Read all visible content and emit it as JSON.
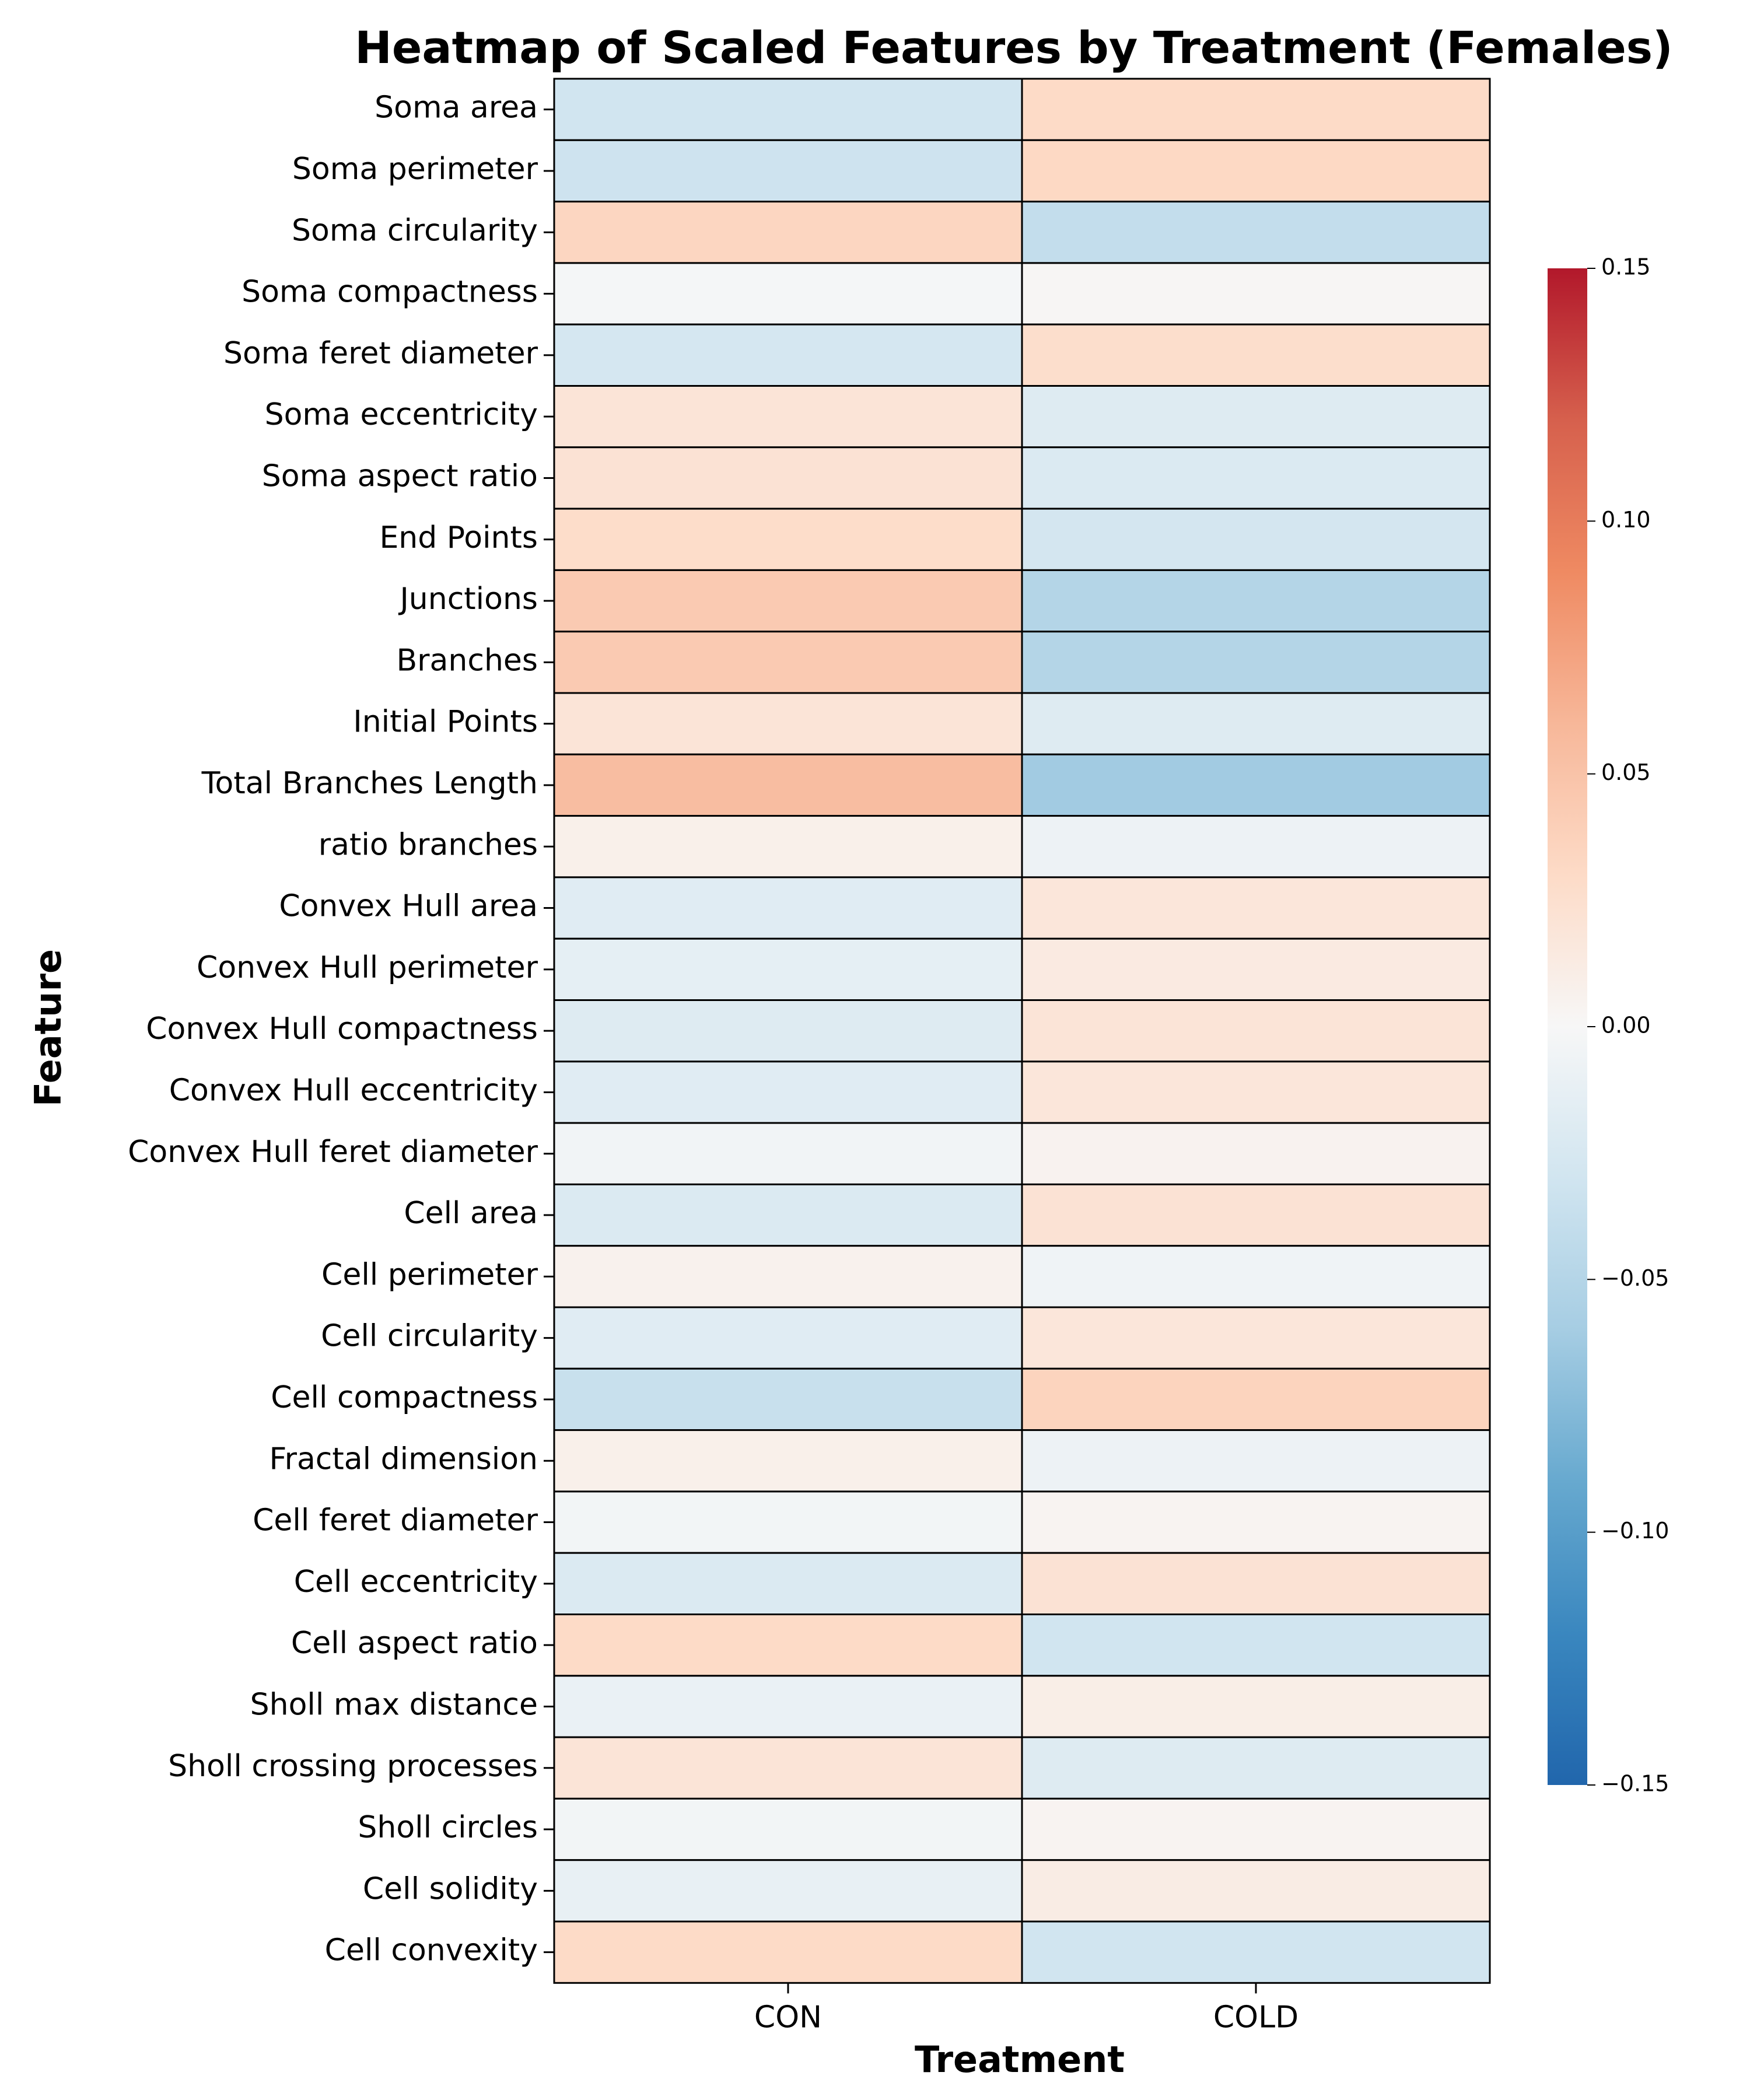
{
  "chart_data": {
    "type": "heatmap",
    "title": "Heatmap of Scaled Features by Treatment (Females)",
    "xlabel": "Treatment",
    "ylabel": "Feature",
    "columns": [
      "CON",
      "COLD"
    ],
    "rows": [
      "Soma area",
      "Soma perimeter",
      "Soma circularity",
      "Soma compactness",
      "Soma feret diameter",
      "Soma eccentricity",
      "Soma aspect ratio",
      "End Points",
      "Junctions",
      "Branches",
      "Initial Points",
      "Total Branches Length",
      "ratio branches",
      "Convex Hull area",
      "Convex Hull perimeter",
      "Convex Hull compactness",
      "Convex Hull eccentricity",
      "Convex Hull feret diameter",
      "Cell area",
      "Cell perimeter",
      "Cell circularity",
      "Cell compactness",
      "Fractal dimension",
      "Cell feret diameter",
      "Cell eccentricity",
      "Cell aspect ratio",
      "Sholl max distance",
      "Sholl crossing processes",
      "Sholl circles",
      "Cell solidity",
      "Cell convexity"
    ],
    "values": [
      [
        -0.03,
        0.03
      ],
      [
        -0.032,
        0.032
      ],
      [
        0.034,
        -0.04
      ],
      [
        -0.002,
        0.002
      ],
      [
        -0.027,
        0.027
      ],
      [
        0.02,
        -0.02
      ],
      [
        0.022,
        -0.022
      ],
      [
        0.028,
        -0.028
      ],
      [
        0.044,
        -0.05
      ],
      [
        0.044,
        -0.05
      ],
      [
        0.02,
        -0.02
      ],
      [
        0.055,
        -0.062
      ],
      [
        0.008,
        -0.008
      ],
      [
        -0.018,
        0.018
      ],
      [
        -0.014,
        0.014
      ],
      [
        -0.02,
        0.02
      ],
      [
        -0.018,
        0.018
      ],
      [
        -0.005,
        0.005
      ],
      [
        -0.022,
        0.022
      ],
      [
        0.006,
        -0.006
      ],
      [
        -0.018,
        0.018
      ],
      [
        -0.036,
        0.036
      ],
      [
        0.008,
        -0.008
      ],
      [
        -0.004,
        0.004
      ],
      [
        -0.022,
        0.022
      ],
      [
        0.03,
        -0.03
      ],
      [
        -0.01,
        0.01
      ],
      [
        0.02,
        -0.02
      ],
      [
        -0.004,
        0.004
      ],
      [
        -0.012,
        0.012
      ],
      [
        0.03,
        -0.03
      ]
    ],
    "colorbar": {
      "colormap": "RdBu_r",
      "vmin": -0.15,
      "vmax": 0.15,
      "tick_values": [
        0.15,
        0.1,
        0.05,
        0.0,
        -0.05,
        -0.1,
        -0.15
      ],
      "tick_labels": [
        "0.15",
        "0.10",
        "0.05",
        "0.00",
        "−0.05",
        "−0.10",
        "−0.15"
      ]
    },
    "grid": false,
    "legend": "colorbar right"
  }
}
